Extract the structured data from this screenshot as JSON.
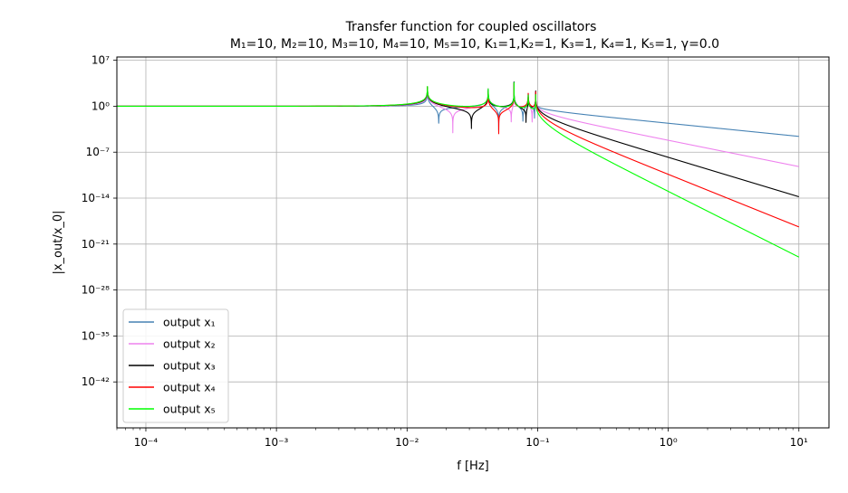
{
  "chart_data": {
    "type": "line",
    "title_line1": "Transfer function for coupled oscillators",
    "title_line2": "M₁=10, M₂=10, M₃=10, M₄=10, M₅=10, K₁=1,K₂=1, K₃=1, K₄=1, K₅=1, γ=0.0",
    "xlabel": "f [Hz]",
    "ylabel": "|x_out/x_0|",
    "x_scale": "log",
    "y_scale": "log",
    "xlim": [
      6e-05,
      17
    ],
    "ylim_exp": [
      -49,
      7.5
    ],
    "x_ticks": [
      {
        "exp": -4,
        "label": "10⁻⁴"
      },
      {
        "exp": -3,
        "label": "10⁻³"
      },
      {
        "exp": -2,
        "label": "10⁻²"
      },
      {
        "exp": -1,
        "label": "10⁻¹"
      },
      {
        "exp": 0,
        "label": "10⁰"
      },
      {
        "exp": 1,
        "label": "10¹"
      }
    ],
    "y_ticks": [
      {
        "exp": 7,
        "label": "10⁷"
      },
      {
        "exp": 0,
        "label": "10⁰"
      },
      {
        "exp": -7,
        "label": "10⁻⁷"
      },
      {
        "exp": -14,
        "label": "10⁻¹⁴"
      },
      {
        "exp": -21,
        "label": "10⁻²¹"
      },
      {
        "exp": -28,
        "label": "10⁻²⁸"
      },
      {
        "exp": -35,
        "label": "10⁻³⁵"
      },
      {
        "exp": -42,
        "label": "10⁻⁴²"
      }
    ],
    "grid": true,
    "legend_position": "lower-left",
    "masses": [
      10,
      10,
      10,
      10,
      10
    ],
    "springs": [
      1,
      1,
      1,
      1,
      1
    ],
    "gamma": 0.0,
    "f_range": [
      6e-05,
      10
    ],
    "series": [
      {
        "name": "output x₁",
        "color": "#4682b4"
      },
      {
        "name": "output x₂",
        "color": "#ee82ee"
      },
      {
        "name": "output x₃",
        "color": "#000000"
      },
      {
        "name": "output x₄",
        "color": "#ff0000"
      },
      {
        "name": "output x₅",
        "color": "#00ff00"
      }
    ]
  }
}
